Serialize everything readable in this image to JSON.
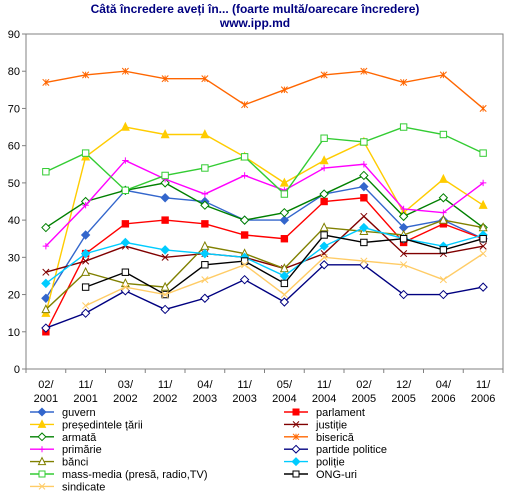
{
  "chart_data": {
    "type": "line",
    "title": "Câtă încredere aveți în... (foarte multă/oarecare încredere)",
    "subtitle": "www.ipp.md",
    "ylim": [
      0,
      90
    ],
    "yticks": [
      0,
      10,
      20,
      30,
      40,
      50,
      60,
      70,
      80,
      90
    ],
    "grid": true,
    "legend_position": "bottom",
    "categories": [
      [
        "02/",
        "2001"
      ],
      [
        "11/",
        "2001"
      ],
      [
        "03/",
        "2002"
      ],
      [
        "11/",
        "2002"
      ],
      [
        "04/",
        "2003"
      ],
      [
        "11/",
        "2003"
      ],
      [
        "05/",
        "2004"
      ],
      [
        "11/",
        "2004"
      ],
      [
        "02/",
        "2005"
      ],
      [
        "12/",
        "2005"
      ],
      [
        "04/",
        "2006"
      ],
      [
        "11/",
        "2006"
      ]
    ],
    "series": [
      {
        "name": "guvern",
        "color": "#3366CC",
        "marker": "diamond",
        "values": [
          19,
          36,
          48,
          46,
          45,
          40,
          40,
          47,
          49,
          38,
          40,
          35
        ]
      },
      {
        "name": "parlament",
        "color": "#FF0000",
        "marker": "square",
        "values": [
          10,
          31,
          39,
          40,
          39,
          36,
          35,
          45,
          46,
          34,
          39,
          35
        ]
      },
      {
        "name": "președintele țării",
        "color": "#FFCC00",
        "marker": "triangle",
        "values": [
          15,
          57,
          65,
          63,
          63,
          57,
          50,
          56,
          61,
          42,
          51,
          44
        ]
      },
      {
        "name": "justiție",
        "color": "#800000",
        "marker": "x",
        "values": [
          26,
          29,
          33,
          30,
          31,
          30,
          27,
          31,
          41,
          31,
          31,
          33
        ]
      },
      {
        "name": "armată",
        "color": "#008000",
        "marker": "diamond-open",
        "values": [
          38,
          45,
          48,
          50,
          44,
          40,
          42,
          47,
          52,
          41,
          46,
          38
        ]
      },
      {
        "name": "biserică",
        "color": "#FF6600",
        "marker": "asterisk",
        "values": [
          77,
          79,
          80,
          78,
          78,
          71,
          75,
          79,
          80,
          77,
          79,
          70
        ]
      },
      {
        "name": "primărie",
        "color": "#FF00FF",
        "marker": "plus",
        "values": [
          33,
          44,
          56,
          51,
          47,
          52,
          48,
          54,
          55,
          43,
          42,
          50
        ]
      },
      {
        "name": "partide politice",
        "color": "#000080",
        "marker": "diamond-open",
        "values": [
          11,
          15,
          21,
          16,
          19,
          24,
          18,
          28,
          28,
          20,
          20,
          22
        ]
      },
      {
        "name": "bănci",
        "color": "#808000",
        "marker": "triangle-open",
        "values": [
          16,
          26,
          23,
          22,
          33,
          31,
          27,
          38,
          37,
          36,
          40,
          38
        ]
      },
      {
        "name": "poliție",
        "color": "#00CCFF",
        "marker": "diamond",
        "values": [
          23,
          31,
          34,
          32,
          31,
          30,
          25,
          33,
          38,
          35,
          33,
          36
        ]
      },
      {
        "name": "mass-media (presă, radio,TV)",
        "color": "#33CC33",
        "marker": "square-open",
        "values": [
          53,
          58,
          48,
          52,
          54,
          57,
          47,
          62,
          61,
          65,
          63,
          58
        ]
      },
      {
        "name": "ONG-uri",
        "color": "#000000",
        "marker": "square-open",
        "values": [
          null,
          22,
          26,
          20,
          28,
          29,
          23,
          36,
          34,
          35,
          32,
          35
        ]
      },
      {
        "name": "sindicate",
        "color": "#FFCC66",
        "marker": "x",
        "values": [
          null,
          17,
          22,
          20,
          24,
          28,
          20,
          30,
          29,
          28,
          24,
          31
        ]
      }
    ]
  }
}
